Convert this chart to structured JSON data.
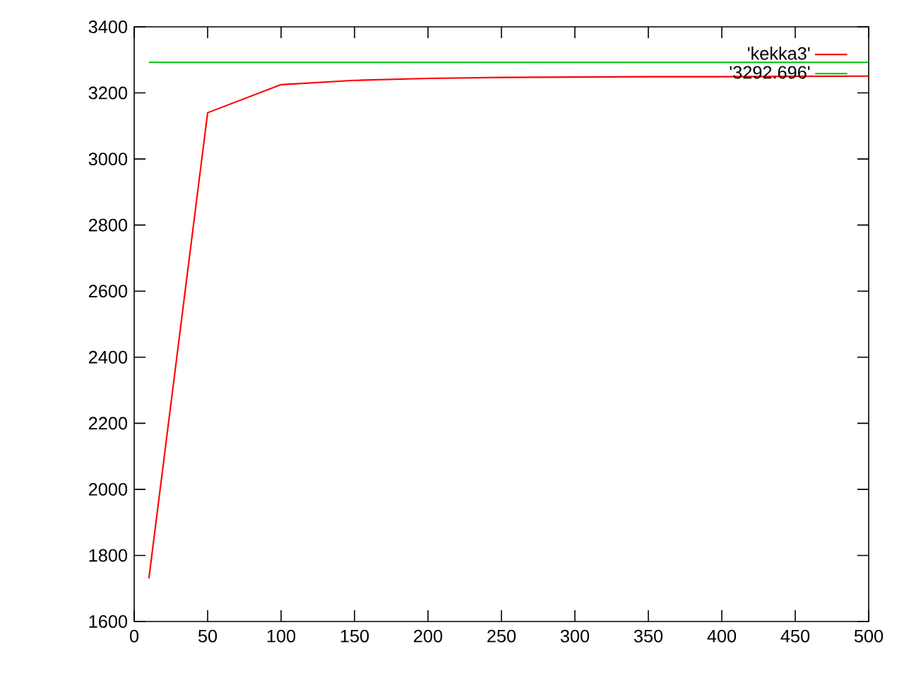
{
  "chart_data": {
    "type": "line",
    "x": [
      10,
      50,
      100,
      150,
      200,
      250,
      300,
      350,
      400,
      450,
      500
    ],
    "series": [
      {
        "name": "'kekka3'",
        "color": "#ff0000",
        "values": [
          1730,
          3140,
          3225,
          3238,
          3244,
          3247,
          3248,
          3249,
          3249,
          3250,
          3251
        ]
      },
      {
        "name": "'3292.696'",
        "color": "#00c000",
        "x": [
          10,
          500
        ],
        "values": [
          3292.696,
          3292.696
        ]
      }
    ],
    "xlim": [
      0,
      500
    ],
    "ylim": [
      1600,
      3400
    ],
    "xticks": [
      0,
      50,
      100,
      150,
      200,
      250,
      300,
      350,
      400,
      450,
      500
    ],
    "yticks": [
      1600,
      1800,
      2000,
      2200,
      2400,
      2600,
      2800,
      3000,
      3200,
      3400
    ],
    "legend": "top right",
    "grid": false,
    "marker": "none",
    "line_style": "solid"
  }
}
